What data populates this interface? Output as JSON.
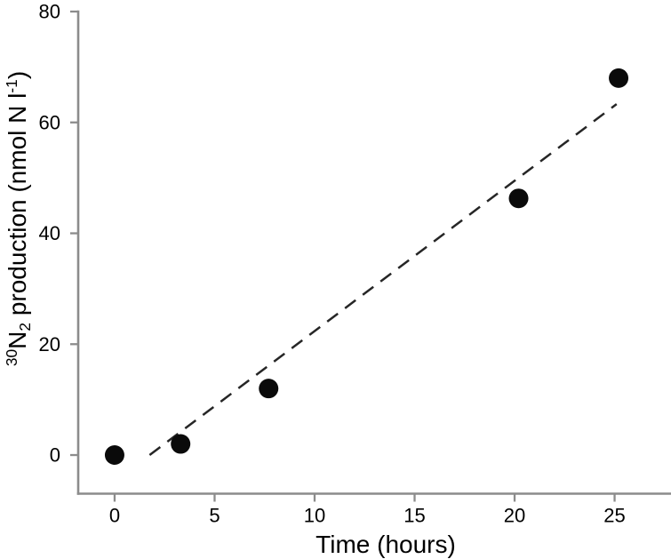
{
  "chart_data": {
    "type": "scatter",
    "title": "",
    "xlabel": "Time (hours)",
    "ylabel": "30N2 production (nmol N l-1)",
    "ylabel_rich": [
      {
        "t": "30",
        "s": "sup"
      },
      {
        "t": "N",
        "s": "base"
      },
      {
        "t": "2",
        "s": "sub"
      },
      {
        "t": " production (nmol N l",
        "s": "base"
      },
      {
        "t": "-1",
        "s": "sup"
      },
      {
        "t": ")",
        "s": "base"
      }
    ],
    "x_ticks": [
      0,
      5,
      10,
      15,
      20,
      25
    ],
    "y_ticks": [
      0,
      20,
      40,
      60,
      80
    ],
    "xlim": [
      -1.82,
      27.82
    ],
    "ylim": [
      -6.97,
      80
    ],
    "points": [
      [
        0,
        0
      ],
      [
        3.3,
        2
      ],
      [
        7.7,
        12
      ],
      [
        20.2,
        46.3
      ],
      [
        25.2,
        68
      ]
    ],
    "trendline": {
      "style": "dashed",
      "x1": 1.75,
      "y1": 0,
      "x2": 25.1,
      "y2": 63.3
    },
    "grid": false,
    "legend": null
  },
  "style": {
    "background": "#ffffff",
    "axis_color": "#8c8c8c",
    "text_color": "#000000",
    "point_color": "#0a0a0a",
    "trend_color": "#262626"
  }
}
